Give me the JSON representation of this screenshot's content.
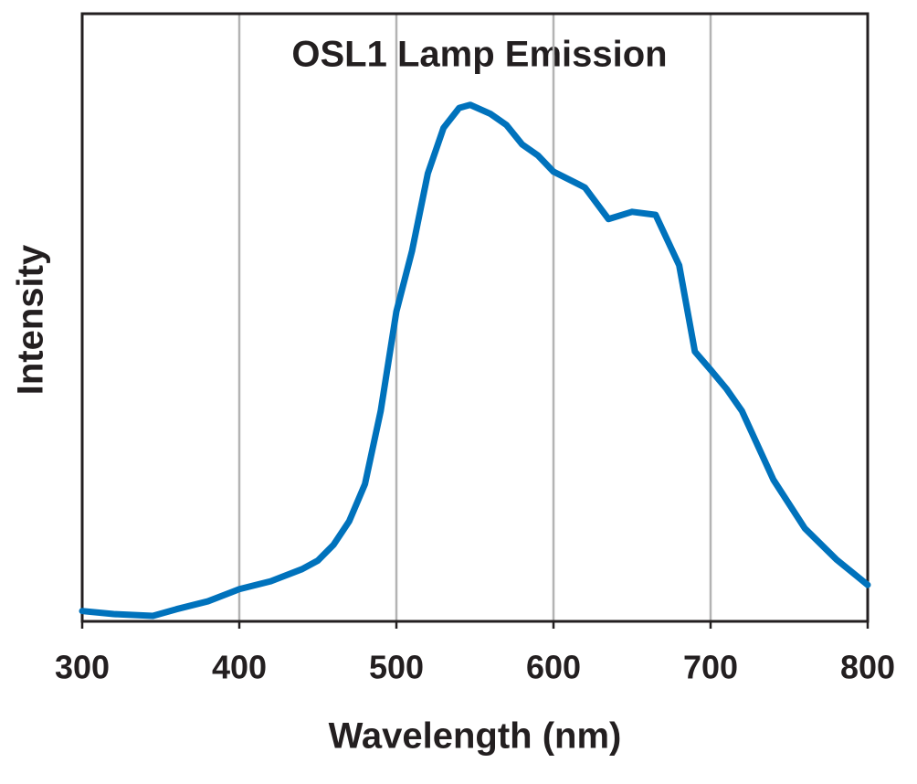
{
  "chart_data": {
    "type": "line",
    "title": "OSL1 Lamp Emission",
    "x_label": "Wavelength (nm)",
    "y_label": "Intensity",
    "x": [
      300,
      320,
      345,
      360,
      380,
      400,
      420,
      440,
      450,
      460,
      470,
      480,
      490,
      500,
      510,
      520,
      530,
      540,
      547,
      560,
      570,
      580,
      590,
      600,
      620,
      635,
      650,
      665,
      680,
      690,
      700,
      710,
      720,
      740,
      760,
      780,
      800
    ],
    "series": [
      {
        "name": "OSL1",
        "color": "#0072bc",
        "values": [
          1.7,
          1.2,
          0.9,
          2,
          3.3,
          5.3,
          6.6,
          8.6,
          10,
          12.6,
          16.5,
          22.6,
          34.6,
          51,
          61,
          73.7,
          81.2,
          84.5,
          85,
          83.5,
          81.7,
          78.5,
          76.7,
          74,
          71.4,
          66.2,
          67.4,
          66.9,
          58.6,
          44.4,
          41.4,
          38.3,
          34.6,
          23.3,
          15.3,
          10.2,
          6
        ]
      }
    ],
    "xlim": [
      300,
      800
    ],
    "xticks": [
      300,
      400,
      500,
      600,
      700,
      800
    ],
    "ylim": [
      0,
      100
    ],
    "grid": true
  }
}
